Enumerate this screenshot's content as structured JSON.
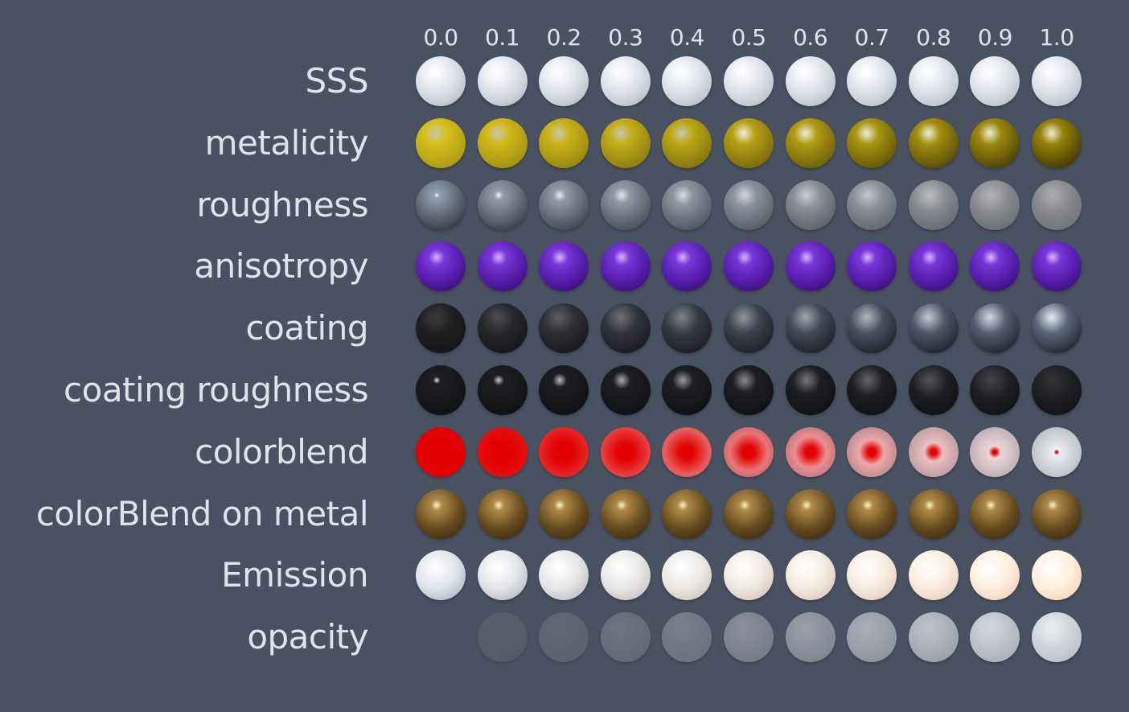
{
  "column_values": [
    "0.0",
    "0.1",
    "0.2",
    "0.3",
    "0.4",
    "0.5",
    "0.6",
    "0.7",
    "0.8",
    "0.9",
    "1.0"
  ],
  "rows": [
    {
      "label": "SSS",
      "material": "sss"
    },
    {
      "label": "metalicity",
      "material": "metalicity"
    },
    {
      "label": "roughness",
      "material": "roughness"
    },
    {
      "label": "anisotropy",
      "material": "anisotropy"
    },
    {
      "label": "coating",
      "material": "coating"
    },
    {
      "label": "coating roughness",
      "material": "coating-roughness"
    },
    {
      "label": "colorblend",
      "material": "colorblend"
    },
    {
      "label": "colorBlend on metal",
      "material": "colorblend-metal"
    },
    {
      "label": "Emission",
      "material": "emission"
    },
    {
      "label": "opacity",
      "material": "opacity"
    }
  ],
  "colors": {
    "background": "#4a5160",
    "text": "#dfe3ea",
    "gold": "#d6bf1c",
    "purple": "#6a2bc4",
    "red": "#e00000",
    "bronze": "#8a6a3a"
  }
}
